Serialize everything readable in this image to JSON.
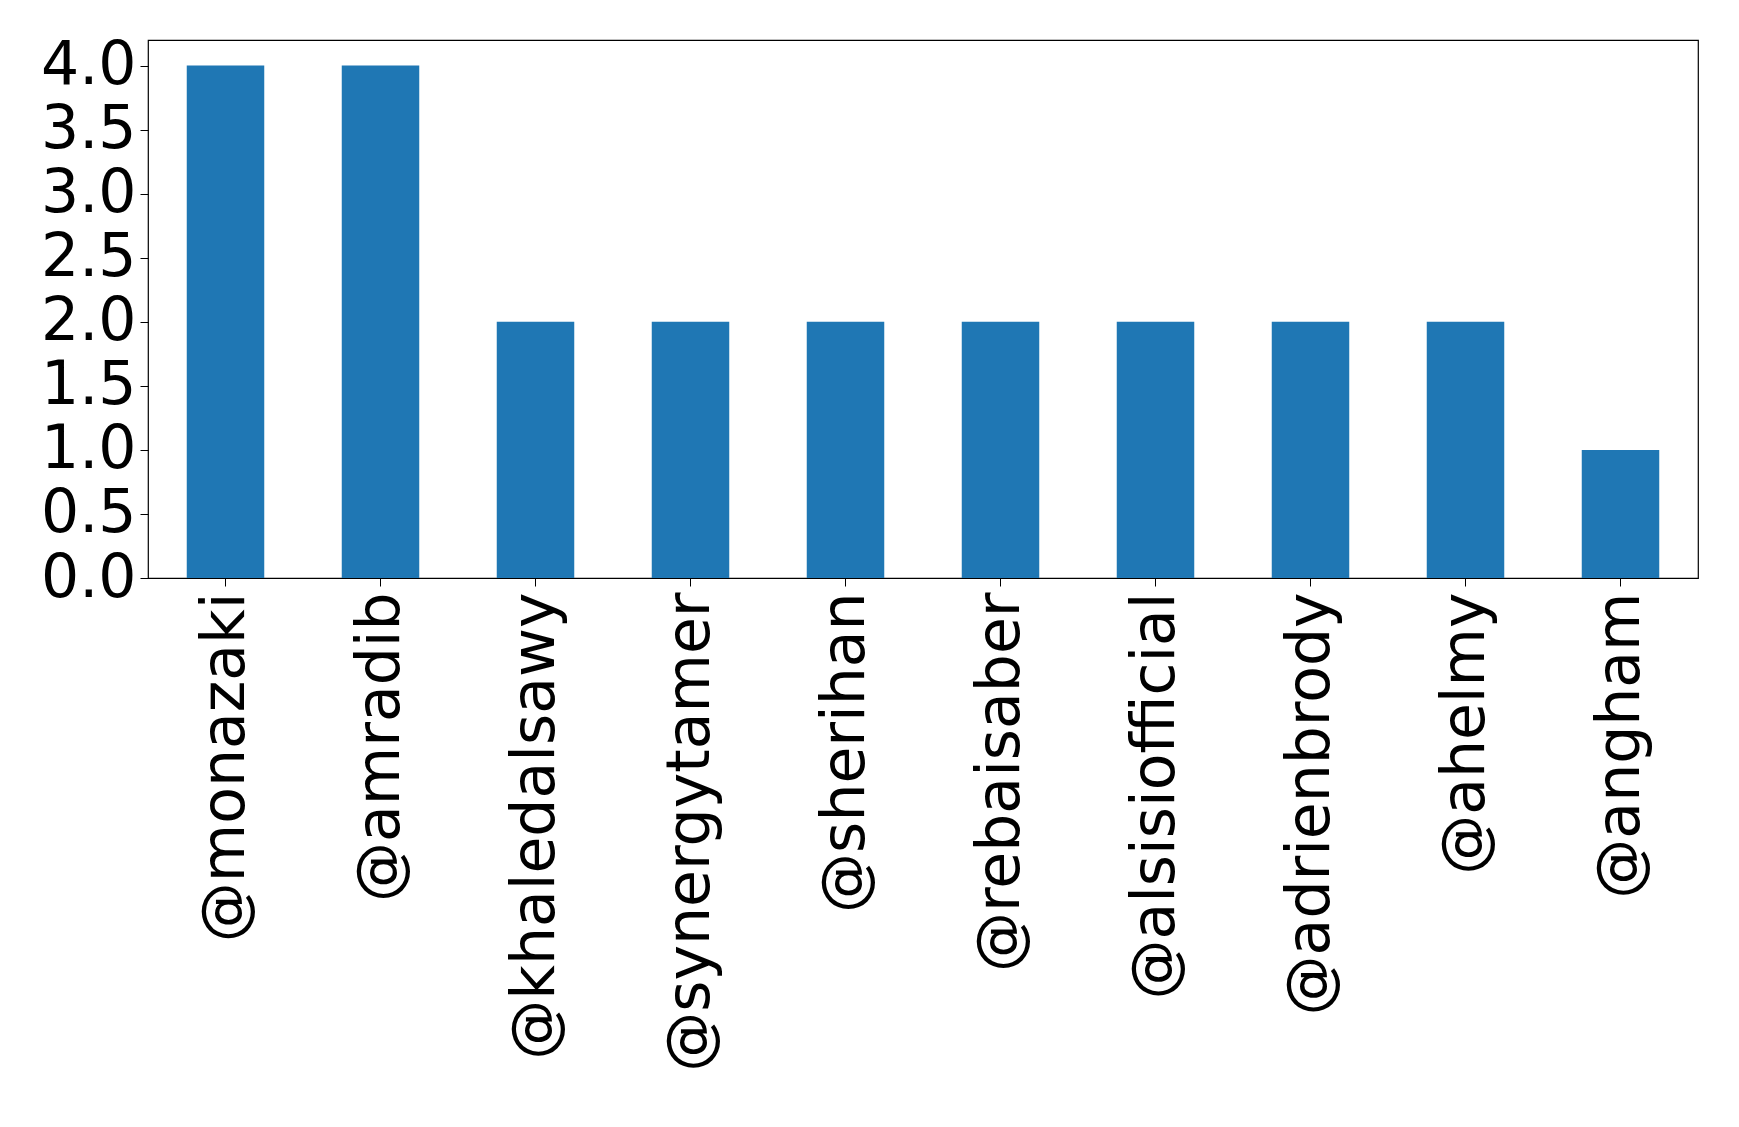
{
  "chart_data": {
    "type": "bar",
    "categories": [
      "@monazaki",
      "@amradib",
      "@khaledalsawy",
      "@synergytamer",
      "@sherihan",
      "@rebaisaber",
      "@alsisiofficial",
      "@adrienbrody",
      "@ahelmy",
      "@angham"
    ],
    "values": [
      4,
      4,
      2,
      2,
      2,
      2,
      2,
      2,
      2,
      1
    ],
    "color": "#1f77b4",
    "ylim": [
      0,
      4.2
    ],
    "yticks": [
      {
        "value": 0,
        "label": "0.0"
      },
      {
        "value": 0.5,
        "label": "0.5"
      },
      {
        "value": 1,
        "label": "1.0"
      },
      {
        "value": 1.5,
        "label": "1.5"
      },
      {
        "value": 2,
        "label": "2.0"
      },
      {
        "value": 2.5,
        "label": "2.5"
      },
      {
        "value": 3,
        "label": "3.0"
      },
      {
        "value": 3.5,
        "label": "3.5"
      },
      {
        "value": 4,
        "label": "4.0"
      }
    ],
    "grid": false
  }
}
